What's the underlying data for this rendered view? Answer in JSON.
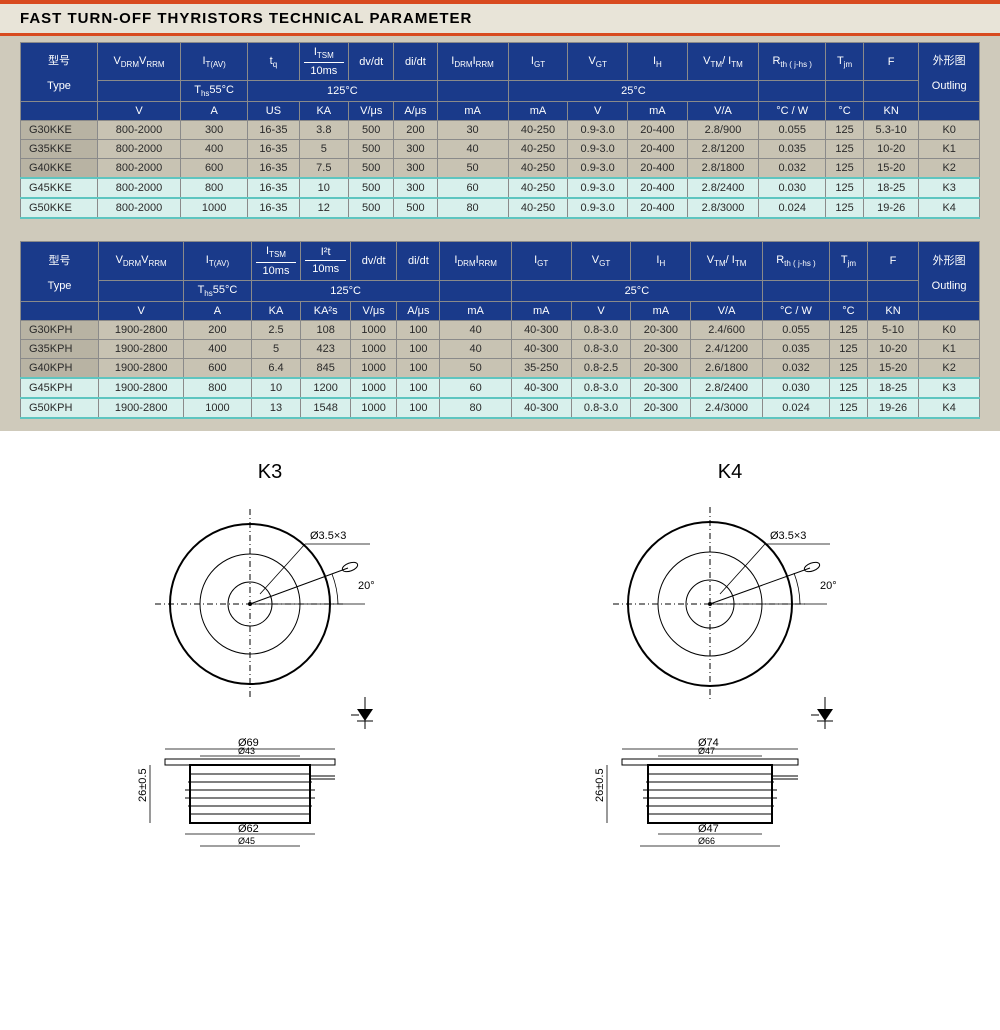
{
  "title": "FAST TURN-OFF  THYRISTORS  TECHNICAL PARAMETER",
  "table1": {
    "headers": {
      "type_cn": "型号",
      "type_en": "Type",
      "vdrm": "V",
      "itav": "A",
      "tq": "US",
      "itsm": "KA",
      "dvdt": "V/μs",
      "didt": "A/μs",
      "idrm": "mA",
      "igt": "mA",
      "vgt": "V",
      "ih": "mA",
      "vtm": "V/A",
      "rth": "°C / W",
      "tjm": "°C",
      "f": "KN",
      "outling_cn": "外形图",
      "outling_en": "Outling",
      "param_vdrm": "V<sub>DRM</sub>V<sub>RRM</sub>",
      "param_itav": "I<sub>T(AV)</sub>",
      "param_tq": "t<sub>q</sub>",
      "param_itsm": "I<sub>TSM</sub>",
      "param_itsm_sub": "10ms",
      "param_dvdt": "dv/dt",
      "param_didt": "di/dt",
      "param_idrm": "I<sub>DRM</sub>I<sub>RRM</sub>",
      "param_igt": "I<sub>GT</sub>",
      "param_vgt": "V<sub>GT</sub>",
      "param_ih": "I<sub>H</sub>",
      "param_vtm": "V<sub>TM</sub>/ I<sub>TM</sub>",
      "param_rth": "R<sub>th ( j-hs )</sub>",
      "param_tjm": "T<sub>jm</sub>",
      "param_f": "F",
      "temp1": "T<sub>hs</sub>55°C",
      "temp2": "125°C",
      "temp3": "25°C"
    },
    "rows": [
      [
        "G30KKE",
        "800-2000",
        "300",
        "16-35",
        "3.8",
        "500",
        "200",
        "30",
        "40-250",
        "0.9-3.0",
        "20-400",
        "2.8/900",
        "0.055",
        "125",
        "5.3-10",
        "K0"
      ],
      [
        "G35KKE",
        "800-2000",
        "400",
        "16-35",
        "5",
        "500",
        "300",
        "40",
        "40-250",
        "0.9-3.0",
        "20-400",
        "2.8/1200",
        "0.035",
        "125",
        "10-20",
        "K1"
      ],
      [
        "G40KKE",
        "800-2000",
        "600",
        "16-35",
        "7.5",
        "500",
        "300",
        "50",
        "40-250",
        "0.9-3.0",
        "20-400",
        "2.8/1800",
        "0.032",
        "125",
        "15-20",
        "K2"
      ],
      [
        "G45KKE",
        "800-2000",
        "800",
        "16-35",
        "10",
        "500",
        "300",
        "60",
        "40-250",
        "0.9-3.0",
        "20-400",
        "2.8/2400",
        "0.030",
        "125",
        "18-25",
        "K3"
      ],
      [
        "G50KKE",
        "800-2000",
        "1000",
        "16-35",
        "12",
        "500",
        "500",
        "80",
        "40-250",
        "0.9-3.0",
        "20-400",
        "2.8/3000",
        "0.024",
        "125",
        "19-26",
        "K4"
      ]
    ],
    "highlight_from": 3
  },
  "table2": {
    "headers": {
      "type_cn": "型号",
      "type_en": "Type",
      "vdrm": "V",
      "itav": "A",
      "itsm": "KA",
      "i2t": "KA²s",
      "dvdt": "V/μs",
      "didt": "A/μs",
      "idrm": "mA",
      "igt": "mA",
      "vgt": "V",
      "ih": "mA",
      "vtm": "V/A",
      "rth": "°C / W",
      "tjm": "°C",
      "f": "KN",
      "outling_cn": "外形图",
      "outling_en": "Outling",
      "param_vdrm": "V<sub>DRM</sub>V<sub>RRM</sub>",
      "param_itav": "I<sub>T(AV)</sub>",
      "param_itsm": "I<sub>TSM</sub>",
      "param_itsm_sub": "10ms",
      "param_i2t": "I²t",
      "param_i2t_sub": "10ms",
      "param_dvdt": "dv/dt",
      "param_didt": "di/dt",
      "param_idrm": "I<sub>DRM</sub>I<sub>RRM</sub>",
      "param_igt": "I<sub>GT</sub>",
      "param_vgt": "V<sub>GT</sub>",
      "param_ih": "I<sub>H</sub>",
      "param_vtm": "V<sub>TM</sub>/ I<sub>TM</sub>",
      "param_rth": "R<sub>th ( j-hs )</sub>",
      "param_tjm": "T<sub>jm</sub>",
      "param_f": "F",
      "temp1": "T<sub>hs</sub>55°C",
      "temp2": "125°C",
      "temp3": "25°C"
    },
    "rows": [
      [
        "G30KPH",
        "1900-2800",
        "200",
        "2.5",
        "108",
        "1000",
        "100",
        "40",
        "40-300",
        "0.8-3.0",
        "20-300",
        "2.4/600",
        "0.055",
        "125",
        "5-10",
        "K0"
      ],
      [
        "G35KPH",
        "1900-2800",
        "400",
        "5",
        "423",
        "1000",
        "100",
        "40",
        "40-300",
        "0.8-3.0",
        "20-300",
        "2.4/1200",
        "0.035",
        "125",
        "10-20",
        "K1"
      ],
      [
        "G40KPH",
        "1900-2800",
        "600",
        "6.4",
        "845",
        "1000",
        "100",
        "50",
        "35-250",
        "0.8-2.5",
        "20-300",
        "2.6/1800",
        "0.032",
        "125",
        "15-20",
        "K2"
      ],
      [
        "G45KPH",
        "1900-2800",
        "800",
        "10",
        "1200",
        "1000",
        "100",
        "60",
        "40-300",
        "0.8-3.0",
        "20-300",
        "2.8/2400",
        "0.030",
        "125",
        "18-25",
        "K3"
      ],
      [
        "G50KPH",
        "1900-2800",
        "1000",
        "13",
        "1548",
        "1000",
        "100",
        "80",
        "40-300",
        "0.8-3.0",
        "20-300",
        "2.4/3000",
        "0.024",
        "125",
        "19-26",
        "K4"
      ]
    ],
    "highlight_from": 3
  },
  "diagrams": {
    "k3": {
      "label": "K3",
      "hole": "Ø3.5×3",
      "angle": "20°",
      "top_d1": "Ø69",
      "top_d2": "Ø43",
      "bot_d1": "Ø62",
      "bot_d2": "Ø45",
      "height": "26±0.5"
    },
    "k4": {
      "label": "K4",
      "hole": "Ø3.5×3",
      "angle": "20°",
      "top_d1": "Ø74",
      "top_d2": "Ø47",
      "bot_d1": "Ø47",
      "bot_d2": "Ø66",
      "height": "26±0.5"
    }
  },
  "colors": {
    "header_bg": "#1a3a8a",
    "title_border": "#d84a1f",
    "body_bg": "#c8c3b3",
    "highlight_bg": "#d8f0ec",
    "highlight_border": "#5ec5c0"
  }
}
